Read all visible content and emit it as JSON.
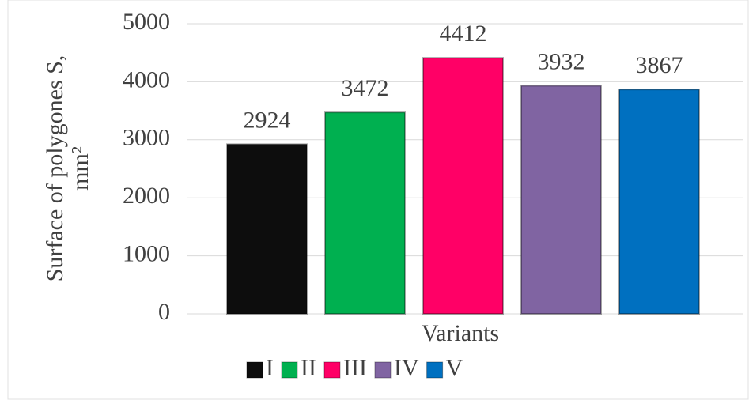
{
  "chart_data": {
    "type": "bar",
    "ylabel": [
      "Surface of polygones S,",
      "mm²"
    ],
    "xlabel": "Variants",
    "categories": [
      null
    ],
    "series": [
      {
        "name": "I",
        "color": "#0d0d0d",
        "values": [
          2924
        ]
      },
      {
        "name": "II",
        "color": "#00b050",
        "values": [
          3472
        ]
      },
      {
        "name": "III",
        "color": "#ff0066",
        "values": [
          4412
        ]
      },
      {
        "name": "IV",
        "color": "#8064a2",
        "values": [
          3932
        ]
      },
      {
        "name": "V",
        "color": "#0070c0",
        "values": [
          3867
        ]
      }
    ],
    "ylim": [
      0,
      5000
    ],
    "yticks": [
      0,
      1000,
      2000,
      3000,
      4000,
      5000
    ],
    "grid": true,
    "legend": "bottom"
  }
}
